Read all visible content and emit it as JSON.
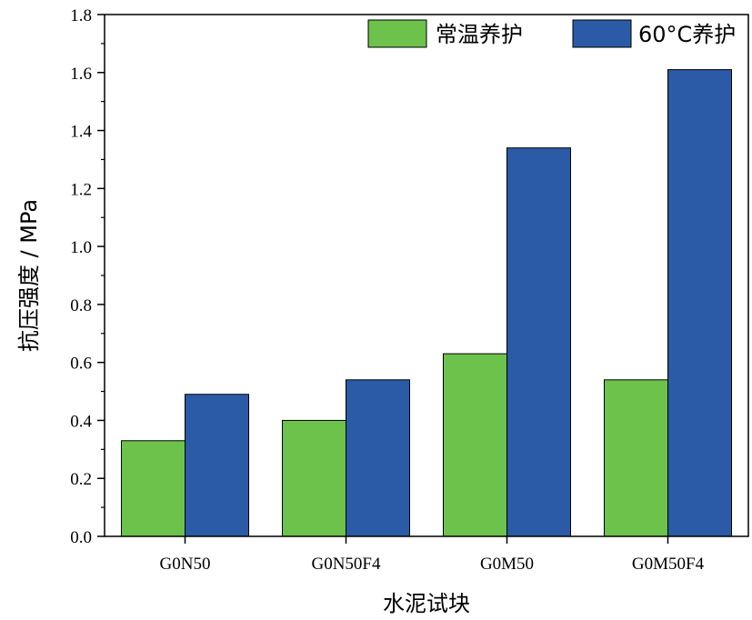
{
  "chart_data": {
    "type": "bar",
    "title": "",
    "xlabel": "水泥试块",
    "ylabel": "抗压强度 / MPa",
    "categories": [
      "G0N50",
      "G0N50F4",
      "G0M50",
      "G0M50F4"
    ],
    "series": [
      {
        "name": "常温养护",
        "values": [
          0.33,
          0.4,
          0.63,
          0.54
        ],
        "color": "#6cc24a"
      },
      {
        "name": "60°C养护",
        "values": [
          0.49,
          0.54,
          1.34,
          1.61
        ],
        "color": "#2b5aa6"
      }
    ],
    "ylim": [
      0,
      1.8
    ],
    "yticks": [
      "0.0",
      "0.2",
      "0.4",
      "0.6",
      "0.8",
      "1.0",
      "1.2",
      "1.4",
      "1.6",
      "1.8"
    ],
    "grid": false,
    "legend_position": "top-right"
  }
}
